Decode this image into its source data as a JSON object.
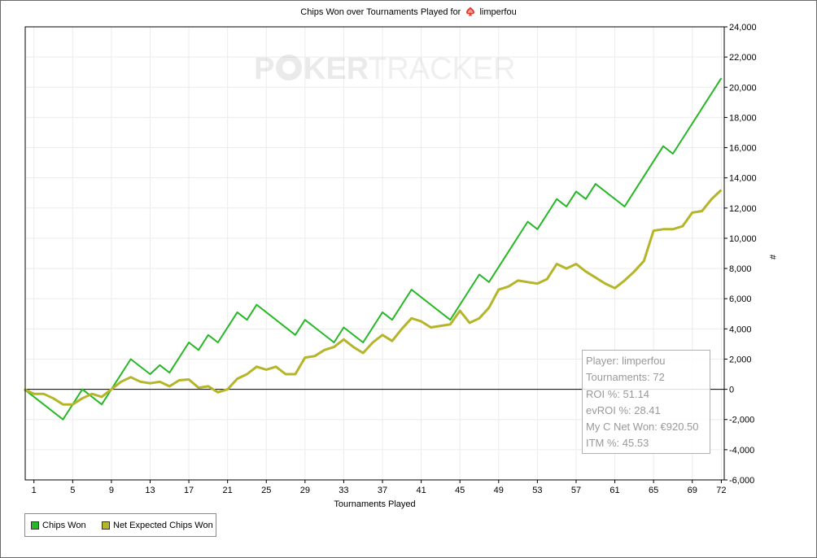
{
  "header": {
    "title_prefix": "Chips Won over Tournaments Played for",
    "player": "limperfou",
    "site_icon": "pokerstars-spade-icon"
  },
  "watermark": {
    "text_left": "P",
    "text_mid": "KER",
    "text_right": "TRACKER",
    "logo": "poker-chip-icon"
  },
  "stats_box": {
    "player": "Player: limperfou",
    "tournaments": "Tournaments: 72",
    "roi": "ROI %: 51.14",
    "evroi": "evROI %: 28.41",
    "net_won": "My C Net Won: €920.50",
    "itm": "ITM %: 45.53"
  },
  "legend": [
    {
      "label": "Chips Won",
      "color": "#26b826"
    },
    {
      "label": "Net Expected Chips Won",
      "color": "#b5b52a"
    }
  ],
  "chart_data": {
    "type": "line",
    "title": "Chips Won over Tournaments Played for limperfou",
    "xlabel": "Tournaments Played",
    "ylabel": "#",
    "xlim": [
      0.1,
      72.3
    ],
    "ylim": [
      -6000,
      24000
    ],
    "x_ticks": [
      1,
      5,
      9,
      13,
      17,
      21,
      25,
      29,
      33,
      37,
      41,
      45,
      49,
      53,
      57,
      61,
      65,
      69,
      72
    ],
    "y_ticks": [
      -6000,
      -4000,
      -2000,
      0,
      2000,
      4000,
      6000,
      8000,
      10000,
      12000,
      14000,
      16000,
      18000,
      20000,
      22000,
      24000
    ],
    "y_tick_labels": [
      "-6,000",
      "-4,000",
      "-2,000",
      "0",
      "2,000",
      "4,000",
      "6,000",
      "8,000",
      "10,000",
      "12,000",
      "14,000",
      "16,000",
      "18,000",
      "20,000",
      "22,000",
      "24,000"
    ],
    "grid": true,
    "legend_position": "bottom-left",
    "series": [
      {
        "name": "Chips Won",
        "color": "#26b826",
        "x": [
          0,
          4,
          6,
          8,
          9,
          11,
          13,
          14,
          15,
          17,
          18,
          19,
          20,
          22,
          23,
          24,
          28,
          29,
          32,
          33,
          35,
          37,
          38,
          40,
          44,
          47,
          48,
          52,
          53,
          55,
          56,
          57,
          58,
          59,
          62,
          66,
          67,
          72
        ],
        "y": [
          0,
          -2000,
          0,
          -1000,
          0,
          2000,
          1000,
          1600,
          1100,
          3100,
          2600,
          3600,
          3100,
          5100,
          4600,
          5600,
          3600,
          4600,
          3100,
          4100,
          3100,
          5100,
          4600,
          6600,
          4600,
          7600,
          7100,
          11100,
          10600,
          12600,
          12100,
          13100,
          12600,
          13600,
          12100,
          16100,
          15600,
          20600
        ]
      },
      {
        "name": "Net Expected Chips Won",
        "color": "#b5b52a",
        "x": [
          0,
          1,
          2,
          3,
          4,
          5,
          6,
          7,
          8,
          9,
          10,
          11,
          12,
          13,
          14,
          15,
          16,
          17,
          18,
          19,
          20,
          21,
          22,
          23,
          24,
          25,
          26,
          27,
          28,
          29,
          30,
          31,
          32,
          33,
          34,
          35,
          36,
          37,
          38,
          39,
          40,
          41,
          42,
          43,
          44,
          45,
          46,
          47,
          48,
          49,
          50,
          51,
          52,
          53,
          54,
          55,
          56,
          57,
          58,
          59,
          60,
          61,
          62,
          63,
          64,
          65,
          66,
          67,
          68,
          69,
          70,
          71,
          72
        ],
        "y": [
          0,
          -300,
          -300,
          -600,
          -1000,
          -1000,
          -600,
          -300,
          -500,
          0,
          500,
          800,
          500,
          400,
          500,
          200,
          600,
          650,
          100,
          200,
          -200,
          0,
          700,
          1000,
          1500,
          1300,
          1500,
          1000,
          1000,
          2100,
          2200,
          2600,
          2800,
          3300,
          2800,
          2400,
          3100,
          3600,
          3200,
          4000,
          4700,
          4500,
          4100,
          4200,
          4300,
          5200,
          4400,
          4700,
          5400,
          6600,
          6800,
          7200,
          7100,
          7000,
          7300,
          8300,
          8000,
          8300,
          7800,
          7400,
          7000,
          6700,
          7200,
          7800,
          8500,
          10500,
          10600,
          10600,
          10800,
          11700,
          11800,
          12600,
          13200
        ]
      }
    ]
  }
}
